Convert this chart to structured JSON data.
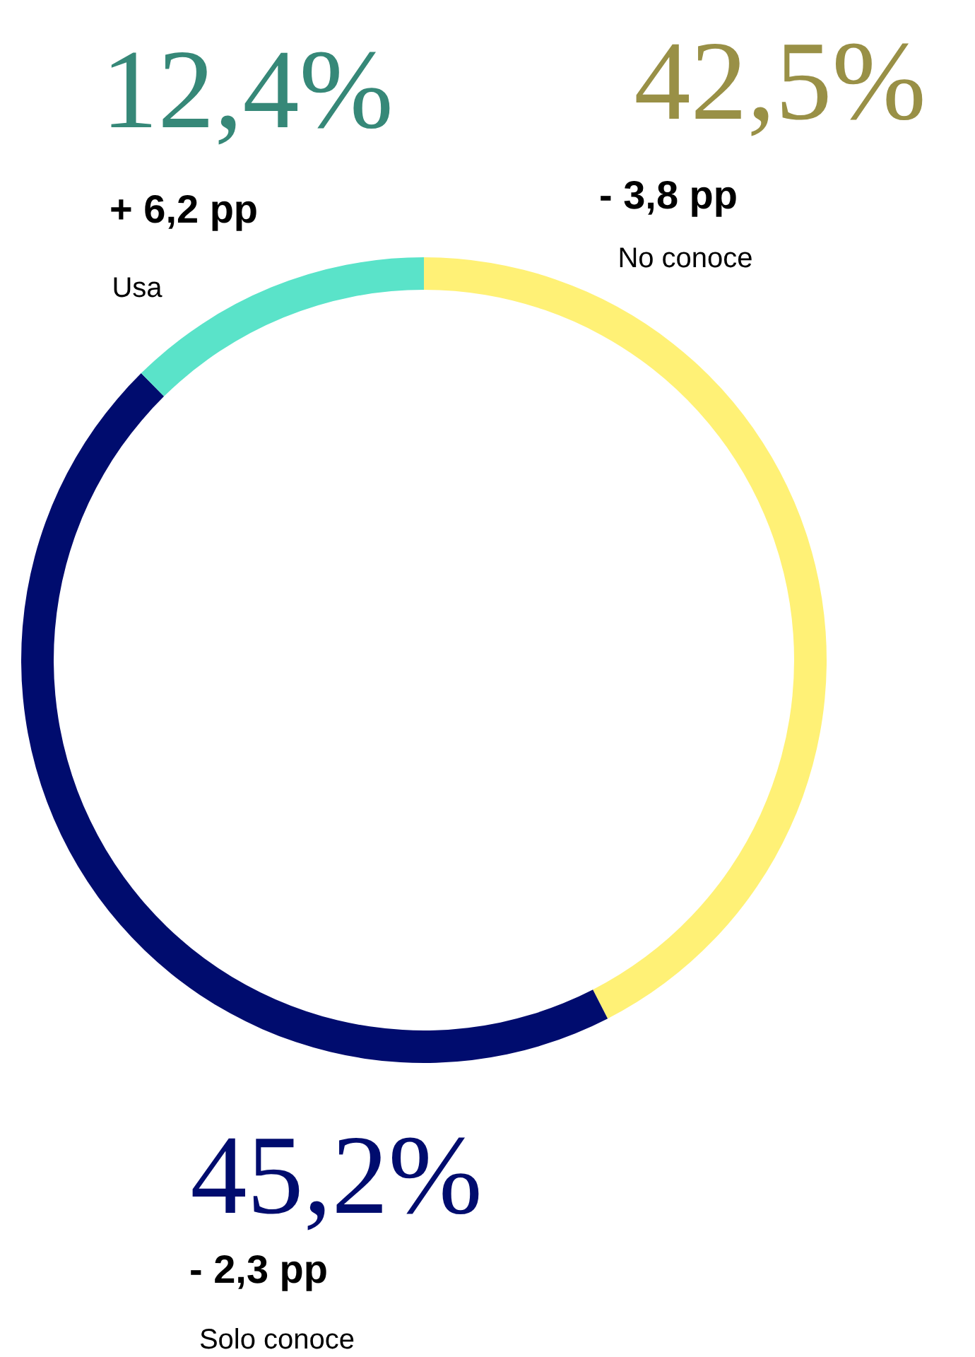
{
  "chart_data": {
    "type": "donut",
    "categories": [
      "No conoce",
      "Solo conoce",
      "Usa"
    ],
    "values": [
      42.5,
      45.2,
      12.4
    ],
    "colors": [
      "#fff176",
      "#000c6e",
      "#5ae3c9"
    ],
    "value_labels": [
      "42,5%",
      "45,2%",
      "12,4%"
    ],
    "annotations": [
      "- 3,8 pp",
      "- 2,3 pp",
      "+ 6,2 pp"
    ],
    "legend": false
  }
}
